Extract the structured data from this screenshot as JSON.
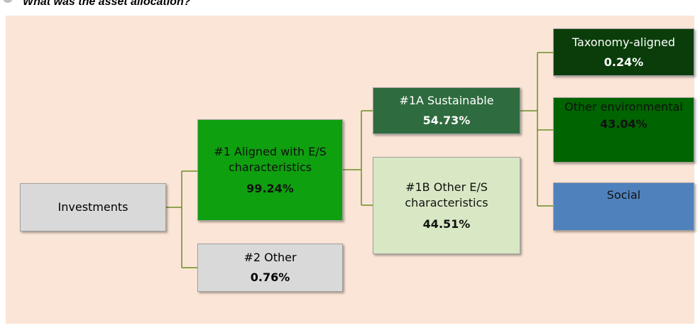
{
  "header": {
    "title": "What was the asset allocation?"
  },
  "nodes": [
    {
      "label": "Investments"
    },
    {
      "label": "#1 Aligned with E/S characteristics",
      "value": "99.24%"
    },
    {
      "label": "#2 Other",
      "value": "0.76%"
    },
    {
      "label": "#1A Sustainable",
      "value": "54.73%"
    },
    {
      "label": "#1B Other E/S characteristics",
      "value": "44.51%"
    },
    {
      "label": "Taxonomy-aligned",
      "value": "0.24%"
    },
    {
      "label": "Other environmental",
      "value": "43.04%"
    },
    {
      "label": "Social"
    }
  ]
}
